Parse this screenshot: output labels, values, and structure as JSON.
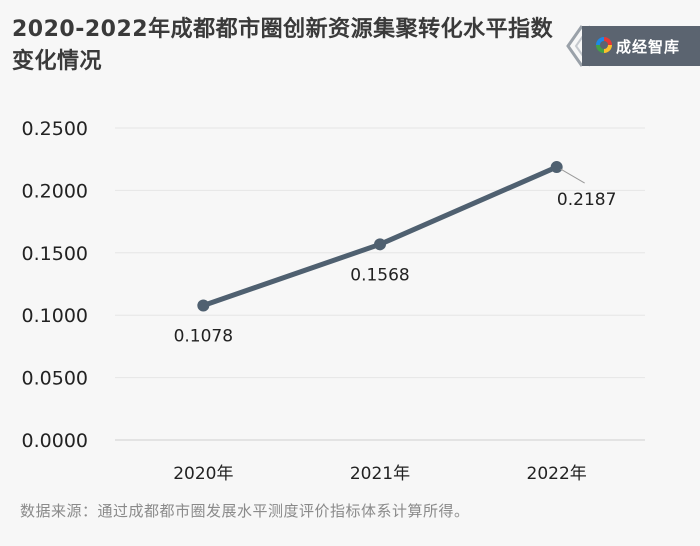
{
  "title": "2020-2022年成都都市圈创新资源集聚转化水平指数变化情况",
  "brand": "成经智库",
  "source": "数据来源：通过成都都市圈发展水平测度评价指标体系计算所得。",
  "colors": {
    "line": "#4f6070",
    "grid": "#e6e6e6",
    "badge": "#5b6470"
  },
  "chart_data": {
    "type": "line",
    "title": "2020-2022年成都都市圈创新资源集聚转化水平指数变化情况",
    "categories": [
      "2020年",
      "2021年",
      "2022年"
    ],
    "series": [
      {
        "values": [
          0.1078,
          0.1568,
          0.2187
        ]
      }
    ],
    "data_labels": [
      "0.1078",
      "0.1568",
      "0.2187"
    ],
    "y_ticks": [
      0.0,
      0.05,
      0.1,
      0.15,
      0.2,
      0.25
    ],
    "y_tick_labels": [
      "0.0000",
      "0.0500",
      "0.1000",
      "0.1500",
      "0.2000",
      "0.2500"
    ],
    "ylim": [
      0,
      0.25
    ],
    "grid": true,
    "legend": "none"
  }
}
